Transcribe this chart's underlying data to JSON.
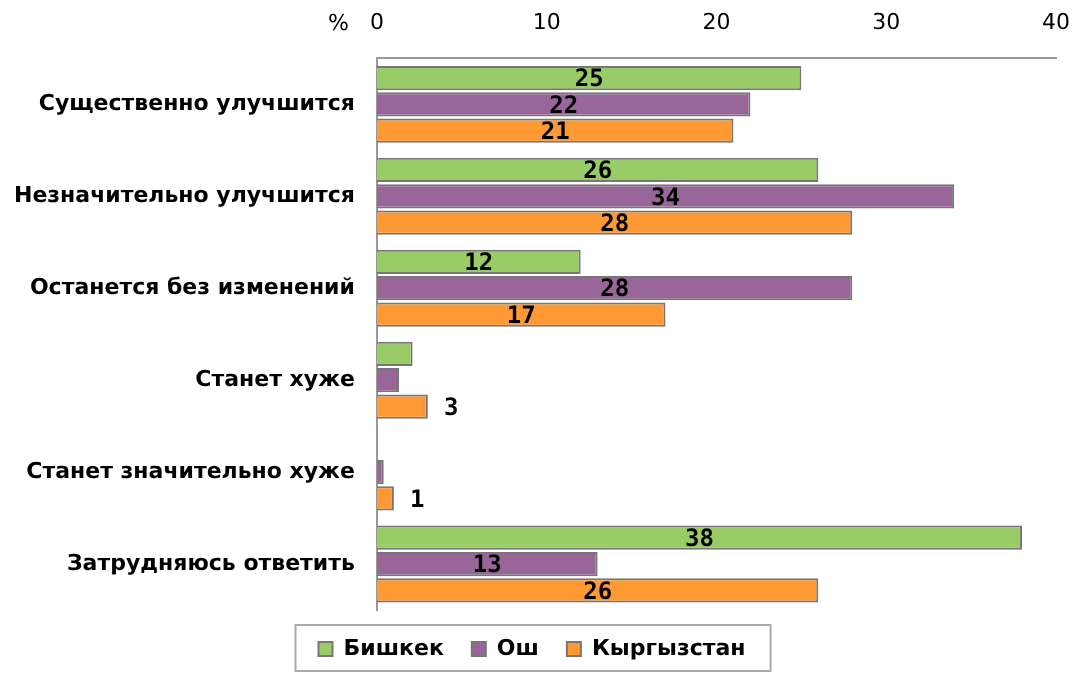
{
  "chart_data": {
    "type": "bar",
    "orientation": "horizontal",
    "xlabel": "%",
    "categories": [
      "Существенно улучшится",
      "Незначительно улучшится",
      "Останется без изменений",
      "Станет хуже",
      "Станет значительно хуже",
      "Затрудняюсь ответить"
    ],
    "series": [
      {
        "name": "Бишкек",
        "color": "#99cc66",
        "values": [
          25,
          26,
          12,
          2.1,
          0,
          38
        ],
        "value_labels": [
          "25",
          "26",
          "12",
          null,
          null,
          "38"
        ]
      },
      {
        "name": "Ош",
        "color": "#996699",
        "values": [
          22,
          34,
          28,
          1.3,
          0.4,
          13
        ],
        "value_labels": [
          "22",
          "34",
          "28",
          null,
          null,
          "13"
        ]
      },
      {
        "name": "Кыргызстан",
        "color": "#ff9933",
        "values": [
          21,
          28,
          17,
          3,
          1,
          26
        ],
        "value_labels": [
          "21",
          "28",
          "17",
          "3",
          "1",
          "26"
        ]
      }
    ],
    "xlim": [
      0,
      40
    ],
    "xticks": [
      0,
      10,
      20,
      30,
      40
    ],
    "grid": false,
    "legend": "bottom"
  }
}
